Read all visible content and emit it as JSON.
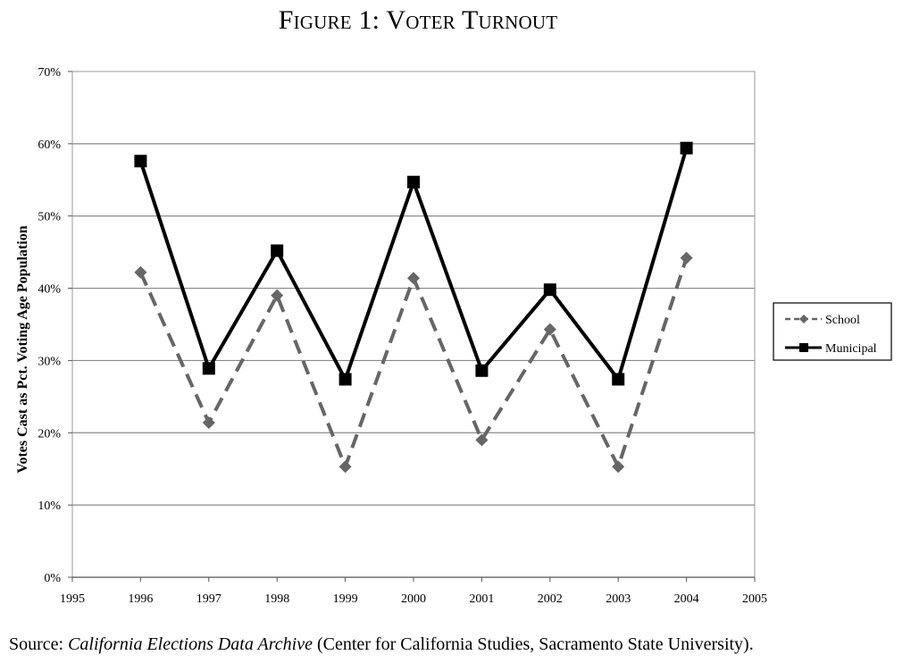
{
  "title": "Figure 1: Voter Turnout",
  "source": {
    "prefix": "Source: ",
    "italic": "California Elections Data Archive",
    "suffix": " (Center for California Studies, Sacramento State University)."
  },
  "chart_data": {
    "type": "line",
    "x": [
      1996,
      1997,
      1998,
      1999,
      2000,
      2001,
      2002,
      2003,
      2004
    ],
    "series": [
      {
        "name": "School",
        "values": [
          42.2,
          21.4,
          39.0,
          15.3,
          41.4,
          19.0,
          34.3,
          15.3,
          44.2
        ],
        "color": "#666666",
        "style": "dashed",
        "marker": "diamond"
      },
      {
        "name": "Municipal",
        "values": [
          57.6,
          28.9,
          45.2,
          27.4,
          54.7,
          28.6,
          39.8,
          27.4,
          59.4
        ],
        "color": "#000000",
        "style": "solid",
        "marker": "square"
      }
    ],
    "xlabel": "",
    "ylabel": "Votes Cast as Pct. Voting Age Population",
    "xlim": [
      1995,
      2005
    ],
    "ylim": [
      0,
      70
    ],
    "xticks": [
      "1995",
      "1996",
      "1997",
      "1998",
      "1999",
      "2000",
      "2001",
      "2002",
      "2003",
      "2004",
      "2005"
    ],
    "yticks": [
      "0%",
      "10%",
      "20%",
      "30%",
      "40%",
      "50%",
      "60%",
      "70%"
    ],
    "grid": "horizontal",
    "legend": "right"
  }
}
